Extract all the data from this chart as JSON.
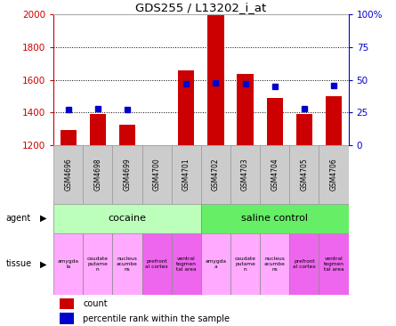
{
  "title": "GDS255 / L13202_i_at",
  "samples": [
    "GSM4696",
    "GSM4698",
    "GSM4699",
    "GSM4700",
    "GSM4701",
    "GSM4702",
    "GSM4703",
    "GSM4704",
    "GSM4705",
    "GSM4706"
  ],
  "counts": [
    1290,
    1390,
    1325,
    1200,
    1660,
    2000,
    1635,
    1490,
    1390,
    1500
  ],
  "percentiles": [
    27,
    28,
    27,
    null,
    47,
    48,
    47,
    45,
    28,
    46
  ],
  "bar_color": "#cc0000",
  "dot_color": "#0000cc",
  "ylim_left": [
    1200,
    2000
  ],
  "ylim_right": [
    0,
    100
  ],
  "yticks_left": [
    1200,
    1400,
    1600,
    1800,
    2000
  ],
  "yticks_right": [
    0,
    25,
    50,
    75,
    100
  ],
  "ytick_labels_right": [
    "0",
    "25",
    "50",
    "75",
    "100%"
  ],
  "agent_groups": [
    {
      "label": "cocaine",
      "start": 0,
      "end": 5,
      "color": "#bbffbb"
    },
    {
      "label": "saline control",
      "start": 5,
      "end": 10,
      "color": "#66ee66"
    }
  ],
  "tissue_colors_per_sample": [
    "#ffaaff",
    "#ffaaff",
    "#ffaaff",
    "#ee66ee",
    "#ee66ee",
    "#ffaaff",
    "#ffaaff",
    "#ffaaff",
    "#ee66ee",
    "#ee66ee"
  ],
  "tissue_labels": [
    "amygda\nla",
    "caudate\nputame\nn",
    "nucleus\nacumbe\nns",
    "prefront\nal cortex",
    "ventral\ntegmen\ntal area",
    "amygda\na",
    "caudate\nputame\nn",
    "nucleus\nacumbe\nns",
    "prefront\nal cortex",
    "ventral\ntegmen\ntal area"
  ],
  "sample_box_color": "#cccccc",
  "sample_box_edge": "#999999",
  "left_axis_color": "#cc0000",
  "right_axis_color": "#0000cc",
  "grid_dotted_color": "#000000"
}
